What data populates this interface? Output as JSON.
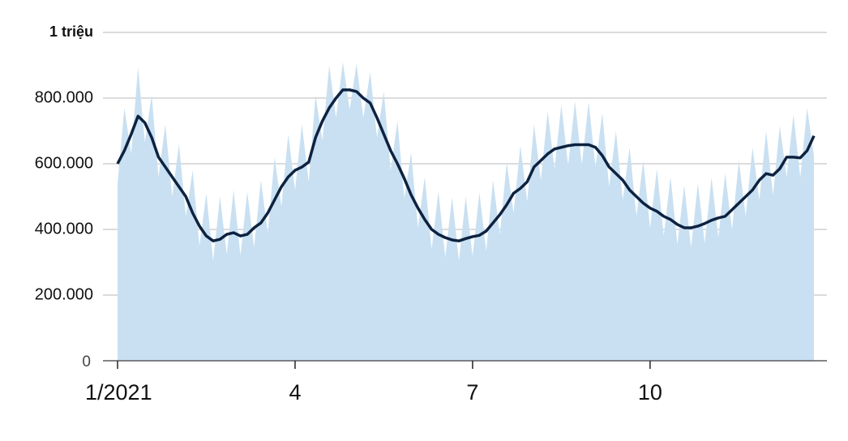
{
  "chart_data": {
    "type": "line",
    "categories": [
      "1/2021",
      null,
      null,
      null,
      null,
      null,
      null,
      null,
      null,
      null,
      null,
      null,
      null,
      null,
      null,
      null,
      null,
      null,
      null,
      null,
      null,
      null,
      null,
      null,
      null,
      null,
      "4",
      null,
      null,
      null,
      null,
      null,
      null,
      null,
      null,
      null,
      null,
      null,
      null,
      null,
      null,
      null,
      null,
      null,
      null,
      null,
      null,
      null,
      null,
      null,
      null,
      null,
      "7",
      null,
      null,
      null,
      null,
      null,
      null,
      null,
      null,
      null,
      null,
      null,
      null,
      null,
      null,
      null,
      null,
      null,
      null,
      null,
      null,
      null,
      null,
      null,
      null,
      null,
      "10",
      null,
      null,
      null,
      null,
      null,
      null,
      null,
      null,
      null,
      null,
      null,
      null,
      null,
      null,
      null,
      null,
      null,
      null,
      null,
      null,
      null,
      null,
      null,
      null
    ],
    "series": [
      {
        "style": "area",
        "color": "#c9e0f2",
        "values": [
          540000,
          770000,
          630000,
          895000,
          665000,
          810000,
          560000,
          720000,
          500000,
          660000,
          440000,
          580000,
          350000,
          510000,
          305000,
          500000,
          325000,
          520000,
          320000,
          515000,
          345000,
          550000,
          390000,
          620000,
          470000,
          690000,
          520000,
          720000,
          545000,
          810000,
          670000,
          900000,
          740000,
          910000,
          765000,
          905000,
          740000,
          880000,
          680000,
          820000,
          580000,
          730000,
          495000,
          635000,
          405000,
          560000,
          340000,
          515000,
          315000,
          498000,
          305000,
          500000,
          318000,
          512000,
          335000,
          550000,
          385000,
          605000,
          450000,
          655000,
          485000,
          720000,
          550000,
          760000,
          585000,
          780000,
          595000,
          790000,
          598000,
          788000,
          590000,
          755000,
          530000,
          700000,
          490000,
          650000,
          440000,
          610000,
          405000,
          585000,
          380000,
          560000,
          355000,
          535000,
          345000,
          540000,
          358000,
          558000,
          375000,
          570000,
          400000,
          610000,
          440000,
          650000,
          490000,
          700000,
          505000,
          715000,
          560000,
          750000,
          558000,
          770000,
          625000
        ]
      },
      {
        "style": "line",
        "color": "#0d2240",
        "values": [
          600000,
          640000,
          690000,
          745000,
          725000,
          680000,
          620000,
          590000,
          560000,
          530000,
          500000,
          450000,
          410000,
          380000,
          365000,
          370000,
          385000,
          390000,
          380000,
          385000,
          405000,
          420000,
          450000,
          490000,
          530000,
          560000,
          580000,
          590000,
          605000,
          680000,
          730000,
          770000,
          800000,
          825000,
          825000,
          820000,
          800000,
          785000,
          740000,
          690000,
          640000,
          600000,
          555000,
          505000,
          465000,
          430000,
          400000,
          385000,
          375000,
          368000,
          365000,
          372000,
          378000,
          382000,
          395000,
          420000,
          445000,
          475000,
          510000,
          525000,
          545000,
          590000,
          610000,
          630000,
          645000,
          650000,
          655000,
          658000,
          658000,
          658000,
          650000,
          625000,
          590000,
          570000,
          550000,
          520000,
          500000,
          480000,
          465000,
          455000,
          440000,
          430000,
          415000,
          405000,
          405000,
          410000,
          418000,
          428000,
          435000,
          440000,
          460000,
          480000,
          500000,
          520000,
          550000,
          570000,
          565000,
          585000,
          620000,
          620000,
          618000,
          640000,
          685000
        ]
      }
    ],
    "ylim": [
      0,
      1000000
    ],
    "yticks": [
      {
        "value": 0,
        "label": "0"
      },
      {
        "value": 200000,
        "label": "200.000"
      },
      {
        "value": 400000,
        "label": "400.000"
      },
      {
        "value": 600000,
        "label": "600.000"
      },
      {
        "value": 800000,
        "label": "800.000"
      },
      {
        "value": 1000000,
        "label": "1 triệu"
      }
    ],
    "grid": true
  }
}
